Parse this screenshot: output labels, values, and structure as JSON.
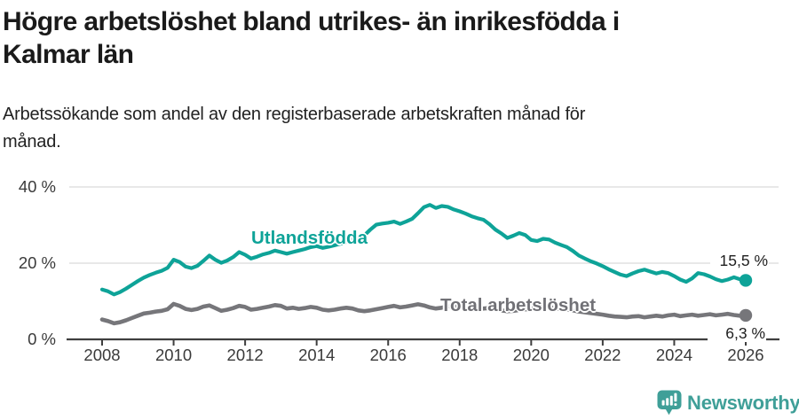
{
  "header": {
    "title_lines": [
      "Högre arbetslöshet bland utrikes- än inrikesfödda i",
      "Kalmar län"
    ],
    "subtitle_lines": [
      "Arbetssökande som andel av den registerbaserade arbetskraften månad för",
      "månad."
    ]
  },
  "chart_data": {
    "type": "line",
    "title": "Högre arbetslöshet bland utrikes- än inrikesfödda i Kalmar län",
    "subtitle": "Arbetssökande som andel av den registerbaserade arbetskraften månad för månad.",
    "x_start": 2008,
    "x_step": 0.16667,
    "x_axis": {
      "tick_years": [
        2008,
        2010,
        2012,
        2014,
        2016,
        2018,
        2020,
        2022,
        2024,
        2026
      ],
      "tick_labels": [
        "2008",
        "2010",
        "2012",
        "2014",
        "2016",
        "2018",
        "2020",
        "2022",
        "2024",
        "2026"
      ],
      "xlim": [
        2007.1,
        2026.9
      ]
    },
    "y_axis": {
      "tick_values": [
        40,
        20,
        0
      ],
      "tick_labels": [
        "40 %",
        "20 %",
        "0 %"
      ],
      "ylim": [
        0,
        43
      ],
      "grid": true
    },
    "series": [
      {
        "name": "Utlandsfödda",
        "color": "#0ea398",
        "end_value": 15.5,
        "end_label": "15,5 %",
        "values": [
          13.1,
          12.6,
          11.8,
          12.4,
          13.3,
          14.3,
          15.3,
          16.2,
          16.9,
          17.5,
          18.0,
          18.8,
          20.9,
          20.3,
          19.1,
          18.7,
          19.3,
          20.6,
          22.0,
          20.9,
          20.1,
          20.7,
          21.6,
          22.9,
          22.2,
          21.2,
          21.7,
          22.3,
          22.7,
          23.3,
          22.9,
          22.5,
          22.9,
          23.3,
          23.7,
          24.2,
          24.5,
          24.0,
          24.3,
          24.7,
          25.1,
          25.6,
          26.2,
          26.6,
          27.3,
          28.8,
          30.1,
          30.4,
          30.6,
          30.9,
          30.3,
          30.9,
          31.6,
          33.1,
          34.7,
          35.3,
          34.5,
          35.0,
          34.8,
          34.1,
          33.6,
          33.0,
          32.3,
          31.8,
          31.4,
          30.2,
          28.8,
          27.8,
          26.6,
          27.2,
          27.9,
          27.4,
          26.1,
          25.8,
          26.4,
          26.2,
          25.4,
          24.8,
          24.2,
          23.2,
          22.0,
          21.2,
          20.5,
          19.9,
          19.2,
          18.4,
          17.7,
          17.0,
          16.6,
          17.3,
          17.9,
          18.3,
          17.8,
          17.3,
          17.7,
          17.4,
          16.6,
          15.7,
          15.1,
          16.0,
          17.4,
          17.1,
          16.5,
          15.8,
          15.3,
          15.7,
          16.3,
          15.8,
          15.5
        ]
      },
      {
        "name": "Total arbetslöshet",
        "color": "#76767a",
        "end_value": 6.3,
        "end_label": "6,3 %",
        "values": [
          5.2,
          4.8,
          4.2,
          4.5,
          5.0,
          5.6,
          6.2,
          6.8,
          7.0,
          7.3,
          7.5,
          7.9,
          9.3,
          8.8,
          8.0,
          7.7,
          8.0,
          8.6,
          8.9,
          8.2,
          7.5,
          7.8,
          8.2,
          8.8,
          8.5,
          7.8,
          8.0,
          8.3,
          8.6,
          9.0,
          8.8,
          8.1,
          8.3,
          8.0,
          8.2,
          8.5,
          8.3,
          7.8,
          7.6,
          7.8,
          8.1,
          8.3,
          8.1,
          7.6,
          7.4,
          7.6,
          7.9,
          8.2,
          8.5,
          8.8,
          8.4,
          8.6,
          8.9,
          9.2,
          8.9,
          8.4,
          8.1,
          8.3,
          8.6,
          8.8,
          8.5,
          8.0,
          7.8,
          7.9,
          8.1,
          8.2,
          8.0,
          7.6,
          7.4,
          7.5,
          7.7,
          7.9,
          7.8,
          8.6,
          8.8,
          8.5,
          8.2,
          8.0,
          7.9,
          7.6,
          7.3,
          7.1,
          6.9,
          6.7,
          6.5,
          6.2,
          6.0,
          5.9,
          5.8,
          6.0,
          6.1,
          5.8,
          6.0,
          6.2,
          6.0,
          6.3,
          6.5,
          6.1,
          6.3,
          6.5,
          6.2,
          6.4,
          6.6,
          6.3,
          6.5,
          6.7,
          6.4,
          6.2,
          6.3
        ]
      }
    ],
    "legend_position": "inline-labels"
  },
  "footer": {
    "brand": "Newsworthy",
    "brand_color": "#3f9f98",
    "logo_icon": "newsworthy-bar-chart-bubble-icon"
  }
}
